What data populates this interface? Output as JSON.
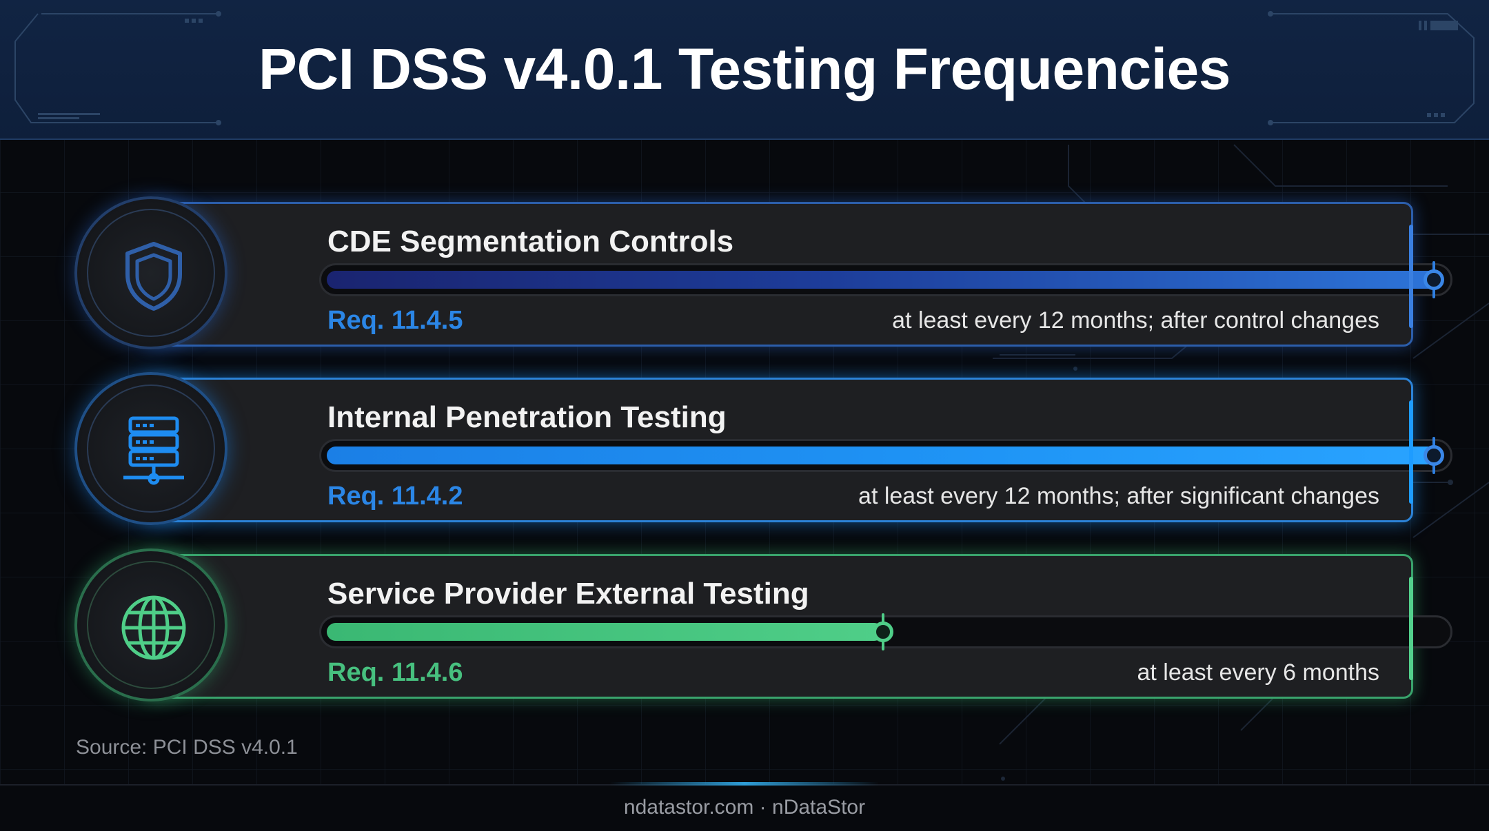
{
  "header": {
    "title": "PCI DSS v4.0.1 Testing Frequencies"
  },
  "items": [
    {
      "title": "CDE Segmentation Controls",
      "requirement": "Req. 11.4.5",
      "frequency": "at least every 12 months; after control changes",
      "progress": 1.0,
      "icon": "shield-icon",
      "accent": "#2b86e6"
    },
    {
      "title": "Internal Penetration Testing",
      "requirement": "Req. 11.4.2",
      "frequency": "at least every 12 months; after significant changes",
      "progress": 1.0,
      "icon": "server-network-icon",
      "accent": "#1e9cff"
    },
    {
      "title": "Service Provider External Testing",
      "requirement": "Req. 11.4.6",
      "frequency": "at least every 6 months",
      "progress": 0.5,
      "icon": "globe-icon",
      "accent": "#47c07f"
    }
  ],
  "source": "Source: PCI DSS v4.0.1",
  "footer": "ndatastor.com · nDataStor"
}
